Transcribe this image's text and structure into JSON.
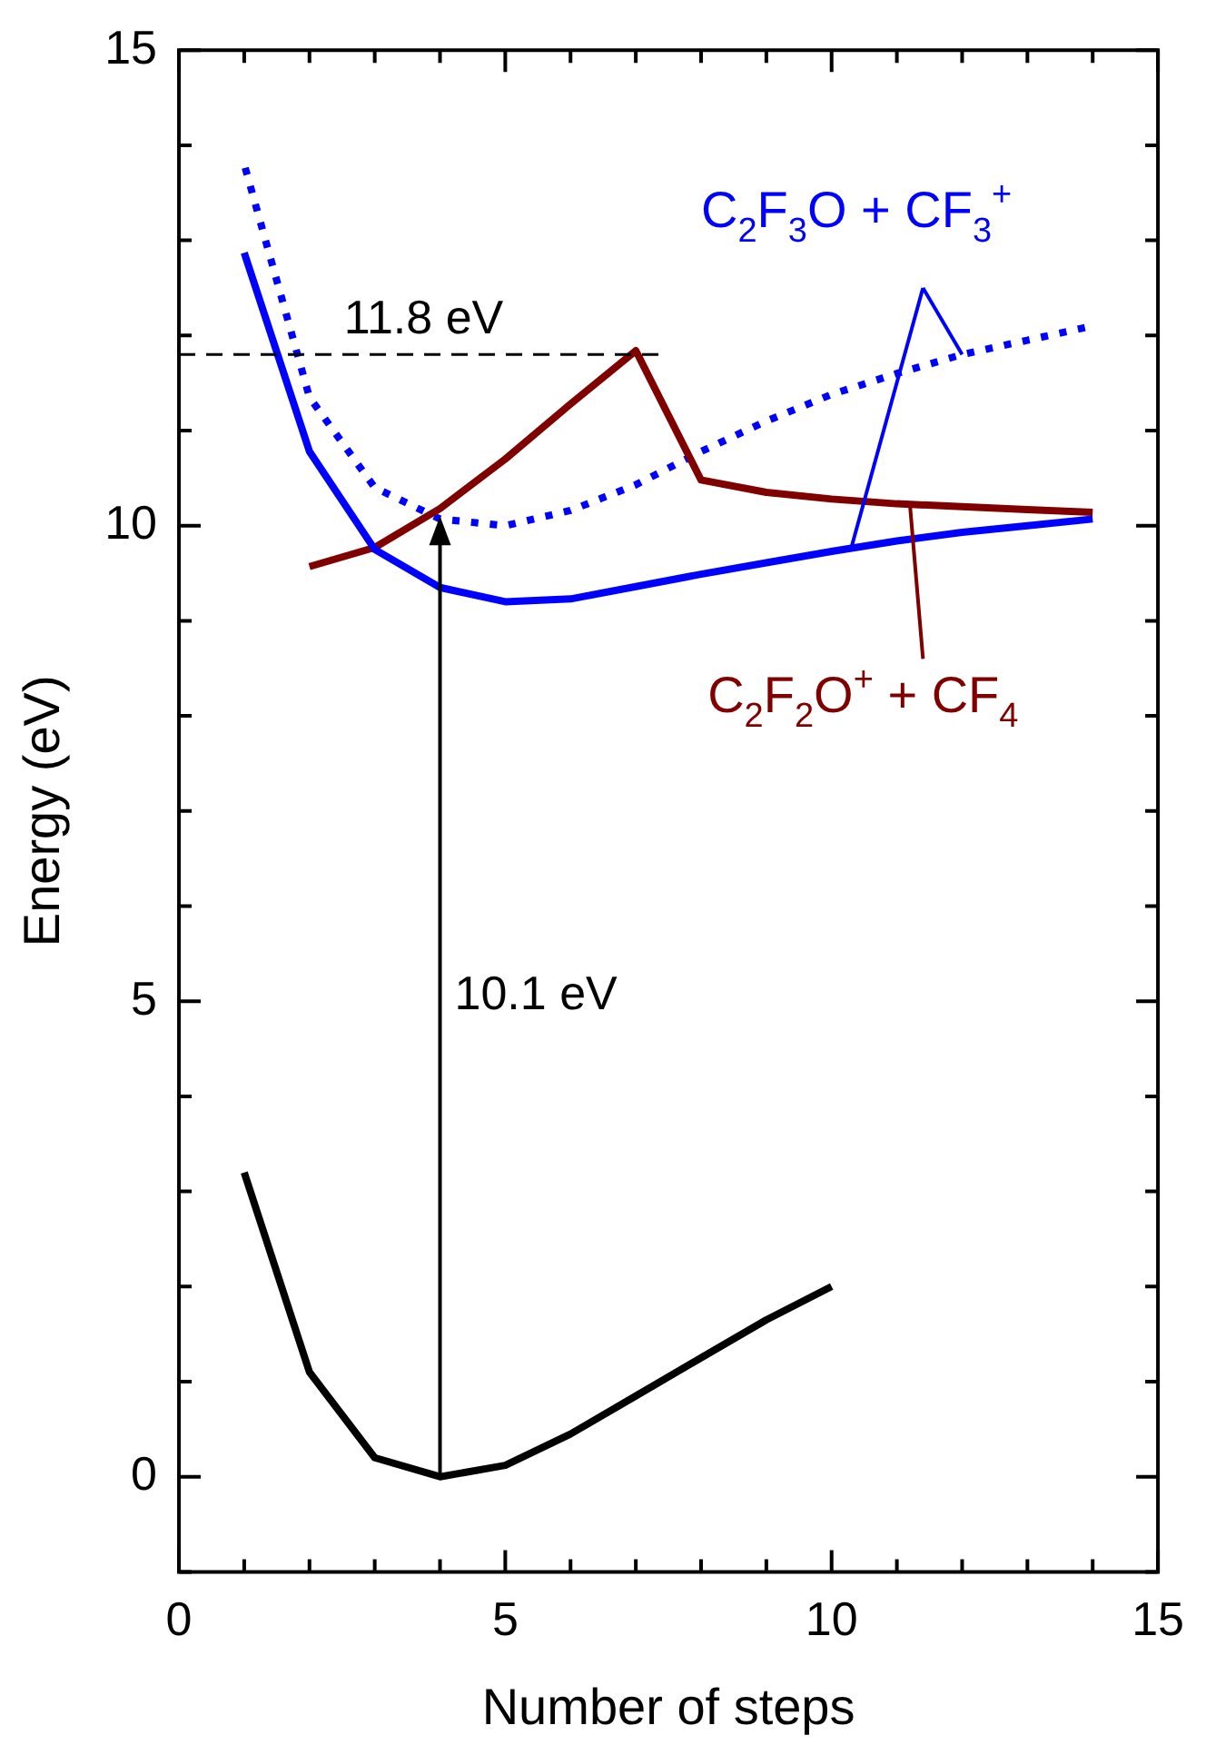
{
  "chart_data": {
    "type": "line",
    "legend": "right",
    "xlabel": "Number of steps",
    "ylabel": "Energy (eV)",
    "xlim": [
      0,
      15
    ],
    "xticks": [
      0,
      5,
      10,
      15
    ],
    "ylim": [
      -1,
      15
    ],
    "yticks": [
      0,
      5,
      10,
      15
    ],
    "series": [
      {
        "name": "C$_{2}$F$_{3}$O + CF$_{3}$$^{+}$",
        "color": "#0000ff",
        "x": [
          1,
          2,
          3,
          4,
          5,
          6,
          7,
          8,
          9,
          10,
          11,
          12,
          13,
          14
        ],
        "values": [
          12.87,
          10.78,
          9.75,
          9.35,
          9.2,
          9.23,
          9.36,
          9.49,
          9.61,
          9.73,
          9.84,
          9.93,
          10.0,
          10.07
        ]
      },
      {
        "name": "C$_{2}$F$_{2}$O$^{+}$ + CF$_{4}$",
        "color": "#800000",
        "x": [
          2,
          3,
          4,
          5,
          6,
          7,
          8,
          9,
          10,
          11,
          12,
          13,
          14
        ],
        "values": [
          9.57,
          9.77,
          10.18,
          10.7,
          11.28,
          11.84,
          10.48,
          10.35,
          10.28,
          10.23,
          10.2,
          10.17,
          10.14
        ]
      },
      {
        "line_style": "dotted",
        "color": "#0000ff",
        "x": [
          1,
          2,
          3,
          4,
          5,
          6,
          7,
          8,
          9,
          10,
          11,
          12,
          13,
          14
        ],
        "values": [
          13.8,
          11.35,
          10.4,
          10.07,
          10.0,
          10.16,
          10.43,
          10.78,
          11.1,
          11.38,
          11.6,
          11.8,
          11.95,
          12.1
        ]
      },
      {
        "color": "#000000",
        "x": [
          1,
          2,
          3,
          4,
          5,
          6,
          7,
          8,
          9,
          10
        ],
        "values": [
          3.2,
          1.1,
          0.2,
          0,
          0.12,
          0.45,
          0.85,
          1.25,
          1.65,
          2.0
        ]
      }
    ],
    "ref_lines": [
      {
        "axis": "y",
        "value": 11.8,
        "label": "11.8 eV",
        "line_style": "dashed",
        "color": "#000000"
      }
    ],
    "annotations": [
      "10.1 eV"
    ]
  }
}
